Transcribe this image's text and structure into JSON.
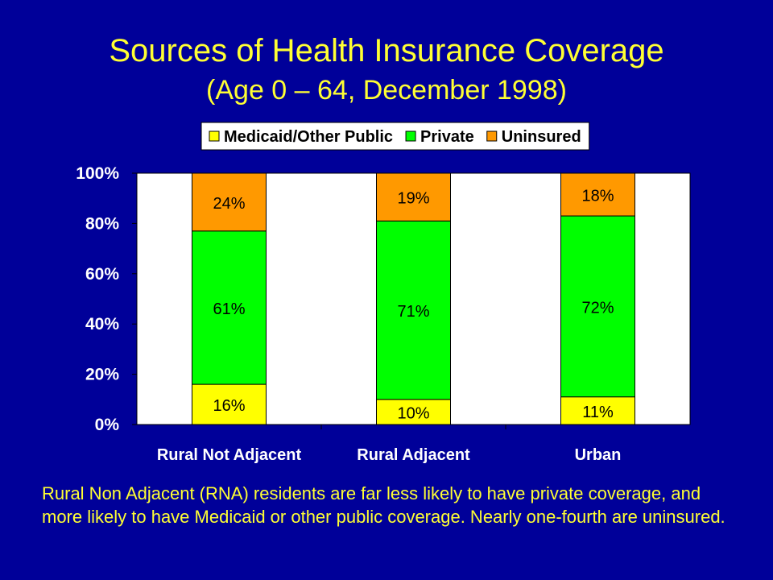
{
  "slide": {
    "title": "Sources of Health Insurance Coverage",
    "subtitle": "(Age 0 – 64, December 1998)",
    "caption": "Rural Non Adjacent (RNA) residents are far less likely to have private coverage, and more likely to have Medicaid or other public coverage. Nearly one-fourth are uninsured."
  },
  "colors": {
    "background": "#000099",
    "title": "#FFFF33",
    "plot_area": "#FFFFFF"
  },
  "chart_data": {
    "type": "bar",
    "stacked": true,
    "categories": [
      "Rural Not Adjacent",
      "Rural Adjacent",
      "Urban"
    ],
    "series": [
      {
        "name": "Medicaid/Other Public",
        "color": "#FFFF00",
        "values": [
          16,
          10,
          11
        ],
        "labels": [
          "16%",
          "10%",
          "11%"
        ]
      },
      {
        "name": "Private",
        "color": "#00FF00",
        "values": [
          61,
          71,
          72
        ],
        "labels": [
          "61%",
          "71%",
          "72%"
        ]
      },
      {
        "name": "Uninsured",
        "color": "#FF9900",
        "values": [
          24,
          19,
          18
        ],
        "labels": [
          "24%",
          "19%",
          "18%"
        ]
      }
    ],
    "ylim": [
      0,
      100
    ],
    "yticks": [
      "0%",
      "20%",
      "40%",
      "60%",
      "80%",
      "100%"
    ],
    "legend_position": "top",
    "grid": false
  }
}
